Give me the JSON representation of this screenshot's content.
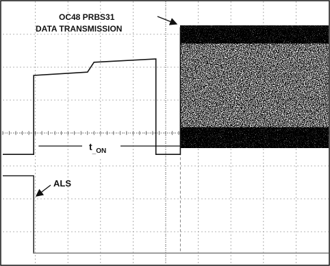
{
  "chart_data": {
    "type": "line",
    "title": "",
    "xlabel": "",
    "ylabel": "",
    "grid": true,
    "grid_divisions": {
      "x": 10,
      "y": 8
    },
    "annotations": {
      "data_transmission_line1": "OC48 PRBS31",
      "data_transmission_line2": "DATA TRANSMISSION",
      "turn_on_time": "t",
      "turn_on_time_subscript": "_ON",
      "als": "ALS"
    },
    "series": [
      {
        "name": "ALS",
        "x": [
          0.0,
          0.95,
          0.95,
          10.0
        ],
        "y": [
          2.7,
          2.7,
          0.35,
          0.35
        ]
      },
      {
        "name": "",
        "x": [
          0.0,
          0.95,
          0.95,
          2.6,
          2.8,
          4.7,
          4.7,
          5.45,
          5.45,
          10.0
        ],
        "y": [
          3.35,
          3.35,
          5.75,
          5.85,
          6.15,
          6.25,
          3.35,
          3.35,
          7.2,
          7.2
        ]
      }
    ]
  }
}
